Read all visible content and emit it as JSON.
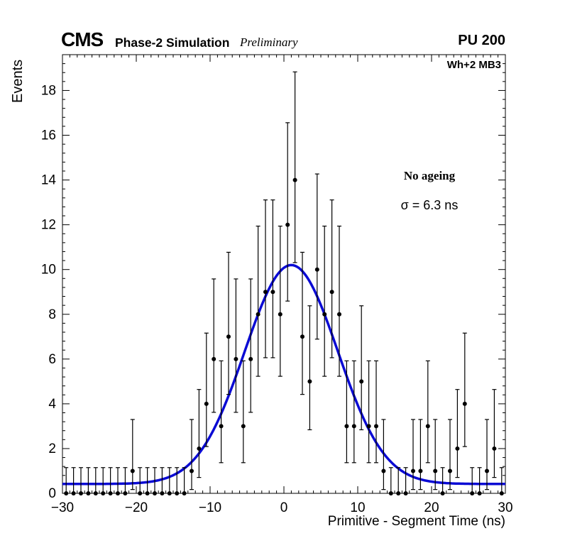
{
  "header": {
    "experiment": "CMS",
    "subtitle": "Phase-2 Simulation",
    "preliminary": "Preliminary",
    "right_label": "PU 200"
  },
  "plot_label": "Wh+2 MB3",
  "annotation": {
    "line1": "No ageing",
    "line2": "σ = 6.3 ns"
  },
  "chart_data": {
    "type": "scatter",
    "title": "",
    "xlabel": "Primitive - Segment Time (ns)",
    "ylabel": "Events",
    "xlim": [
      -30,
      30
    ],
    "ylim": [
      0,
      19.6
    ],
    "grid": false,
    "legend": "none",
    "x_major_ticks": [
      -30,
      -20,
      -10,
      0,
      10,
      20,
      30
    ],
    "x_tick_labels": [
      "−30",
      "−20",
      "−10",
      "0",
      "10",
      "20",
      "30"
    ],
    "x_minor_step": 1,
    "y_major_ticks": [
      0,
      2,
      4,
      6,
      8,
      10,
      12,
      14,
      16,
      18
    ],
    "y_minor_step": 0.4,
    "bin_width": 1,
    "marker_color": "#000000",
    "fit_color": "#0a0ad4",
    "points": {
      "x": [
        -29.5,
        -28.5,
        -27.5,
        -26.5,
        -25.5,
        -24.5,
        -23.5,
        -22.5,
        -21.5,
        -20.5,
        -19.5,
        -18.5,
        -17.5,
        -16.5,
        -15.5,
        -14.5,
        -13.5,
        -12.5,
        -11.5,
        -10.5,
        -9.5,
        -8.5,
        -7.5,
        -6.5,
        -5.5,
        -4.5,
        -3.5,
        -2.5,
        -1.5,
        -0.5,
        0.5,
        1.5,
        2.5,
        3.5,
        4.5,
        5.5,
        6.5,
        7.5,
        8.5,
        9.5,
        10.5,
        11.5,
        12.5,
        13.5,
        14.5,
        15.5,
        16.5,
        17.5,
        18.5,
        19.5,
        20.5,
        21.5,
        22.5,
        23.5,
        24.5,
        25.5,
        26.5,
        27.5,
        28.5,
        29.5
      ],
      "y": [
        0,
        0,
        0,
        0,
        0,
        0,
        0,
        0,
        0,
        1,
        0,
        0,
        0,
        0,
        0,
        0,
        0,
        1,
        2,
        4,
        6,
        3,
        7,
        6,
        3,
        6,
        8,
        9,
        9,
        8,
        12,
        14,
        7,
        5,
        10,
        8,
        9,
        8,
        3,
        3,
        5,
        3,
        3,
        1,
        0,
        0,
        0,
        1,
        1,
        3,
        1,
        0,
        1,
        2,
        4,
        0,
        0,
        1,
        2,
        0
      ]
    },
    "poisson_errors": {
      "up": [
        1.15,
        2.3,
        2.64,
        2.92,
        3.16,
        3.38,
        3.58,
        3.77,
        3.94,
        4.11,
        4.27,
        4.42,
        4.56,
        4.7,
        4.83
      ],
      "low": [
        0.0,
        0.83,
        1.29,
        1.63,
        1.91,
        2.16,
        2.38,
        2.58,
        2.77,
        2.94,
        3.11,
        3.26,
        3.41,
        3.55,
        3.69
      ]
    },
    "fit": {
      "shape": "gaussian_plus_constant",
      "baseline": 0.42,
      "amplitude": 9.78,
      "mean": 1.0,
      "sigma": 6.3
    }
  }
}
